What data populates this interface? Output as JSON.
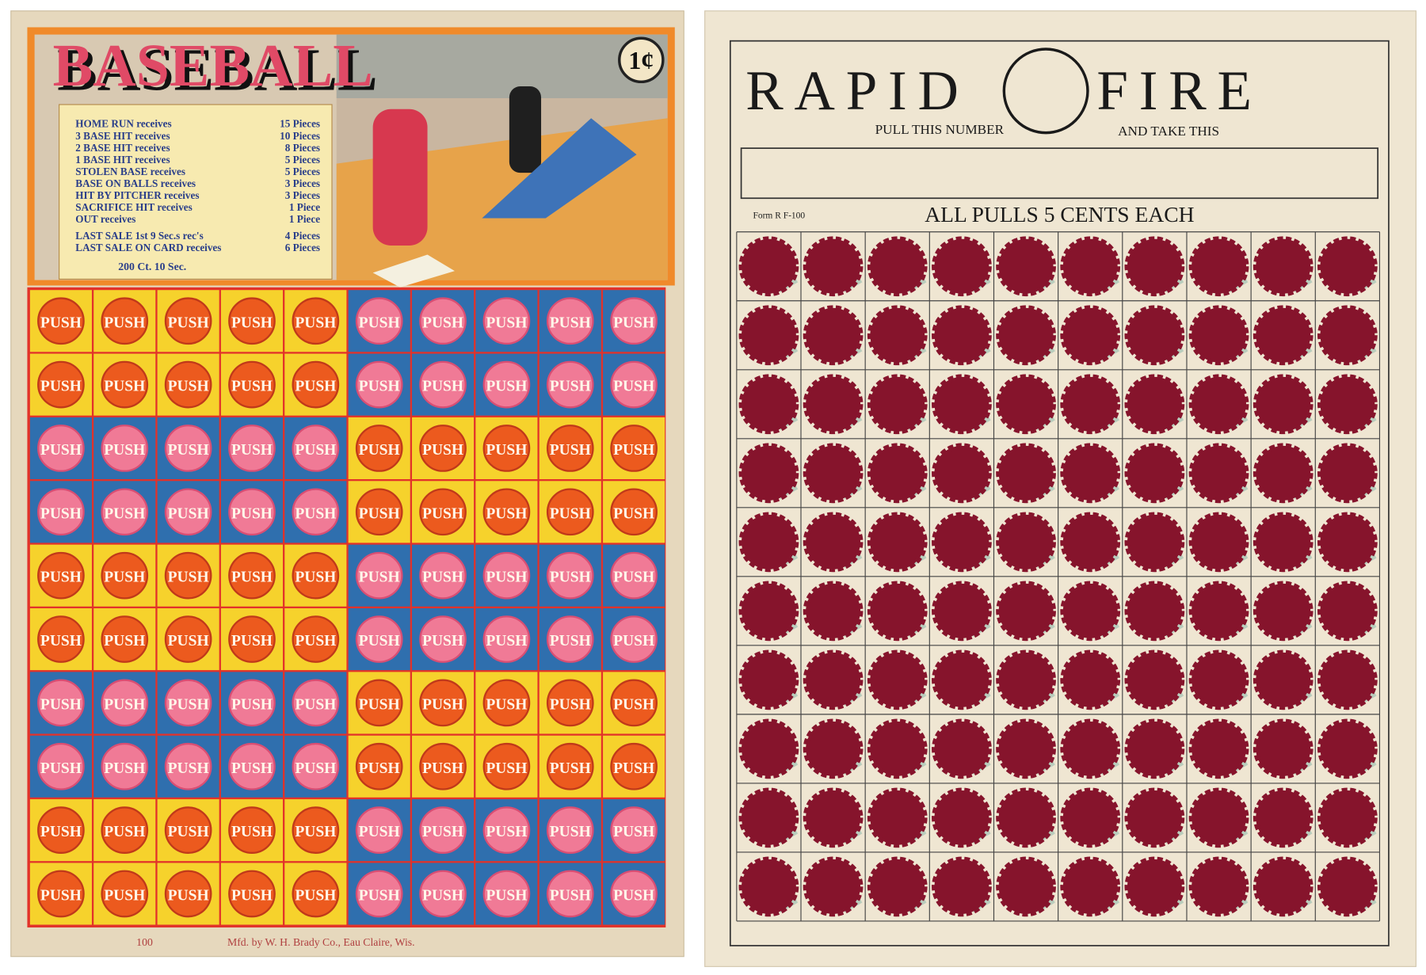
{
  "baseball_card": {
    "title": "BASEBALL",
    "price": "1¢",
    "prizes": [
      {
        "label": "HOME RUN receives",
        "prize": "15 Pieces"
      },
      {
        "label": "3 BASE HIT receives",
        "prize": "10 Pieces"
      },
      {
        "label": "2 BASE HIT receives",
        "prize": "8 Pieces"
      },
      {
        "label": "1 BASE HIT receives",
        "prize": "5 Pieces"
      },
      {
        "label": "STOLEN BASE receives",
        "prize": "5 Pieces"
      },
      {
        "label": "BASE ON BALLS receives",
        "prize": "3 Pieces"
      },
      {
        "label": "HIT BY PITCHER receives",
        "prize": "3 Pieces"
      },
      {
        "label": "SACRIFICE HIT receives",
        "prize": "1 Piece"
      },
      {
        "label": "OUT receives",
        "prize": "1 Piece"
      },
      {
        "label": "LAST SALE 1st 9 Sec.s rec's",
        "prize": "4 Pieces"
      },
      {
        "label": "LAST SALE ON CARD receives",
        "prize": "6 Pieces"
      }
    ],
    "count_note": "200 Ct. 10 Sec.",
    "button_label": "PUSH",
    "footer_number": "100",
    "maker": "Mfd. by W. H. Brady Co., Eau Claire, Wis."
  },
  "rapid_fire_card": {
    "title_left": "RAPID",
    "title_right": "FIRE",
    "pull_label": "PULL THIS NUMBER",
    "take_label": "AND TAKE THIS",
    "form": "Form R F-100",
    "price_line": "ALL PULLS 5 CENTS EACH"
  }
}
